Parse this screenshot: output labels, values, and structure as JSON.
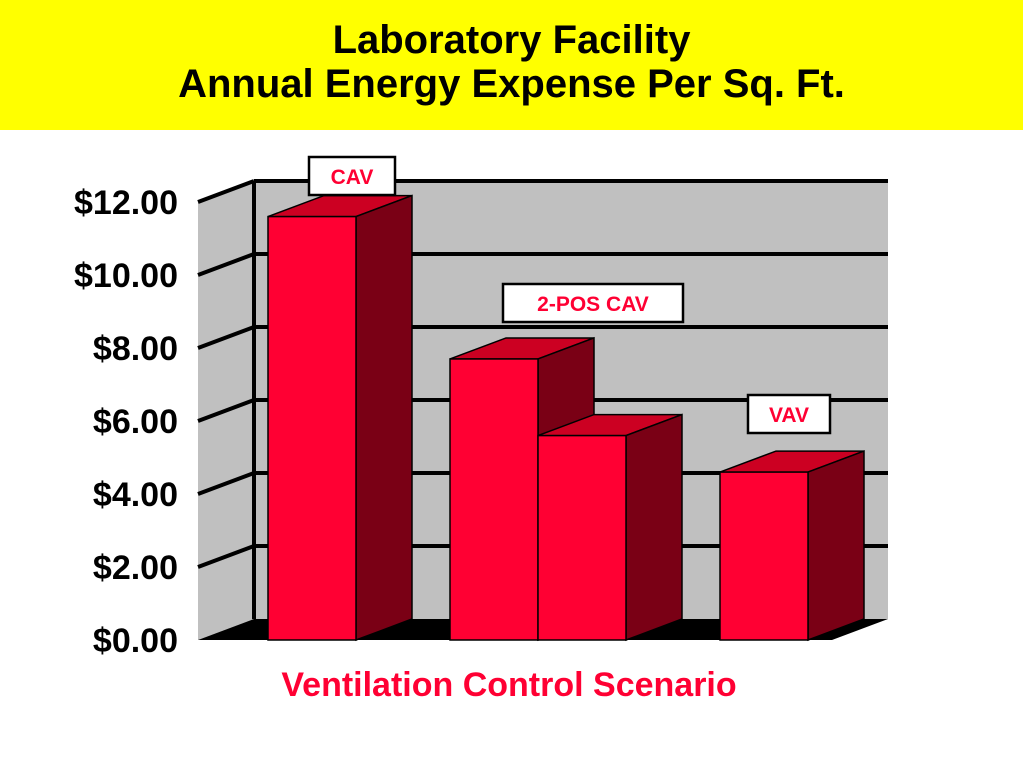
{
  "title": {
    "line1": "Laboratory Facility",
    "line2": "Annual Energy Expense Per Sq. Ft."
  },
  "colors": {
    "banner": "#ffff00",
    "bar_front": "#ff0033",
    "bar_side": "#7a0015",
    "bar_top": "#cc0022",
    "wall": "#c0c0c0",
    "floor": "#000000",
    "label_text": "#ff0033"
  },
  "chart_data": {
    "type": "bar",
    "title": "Laboratory Facility Annual Energy Expense Per Sq. Ft.",
    "xlabel": "Ventilation  Control  Scenario",
    "ylabel": "",
    "ylim": [
      0,
      12
    ],
    "y_ticks": [
      "$0.00",
      "$2.00",
      "$4.00",
      "$6.00",
      "$8.00",
      "$10.00",
      "$12.00"
    ],
    "grid": true,
    "bars": [
      {
        "label": "CAV",
        "value": 11.6
      },
      {
        "label": "2-POS CAV",
        "value": 7.7
      },
      {
        "label": "2-POS CAV",
        "value": 5.6
      },
      {
        "label": "VAV",
        "value": 4.6
      }
    ],
    "labels": [
      "CAV",
      "2-POS CAV",
      "VAV"
    ]
  }
}
